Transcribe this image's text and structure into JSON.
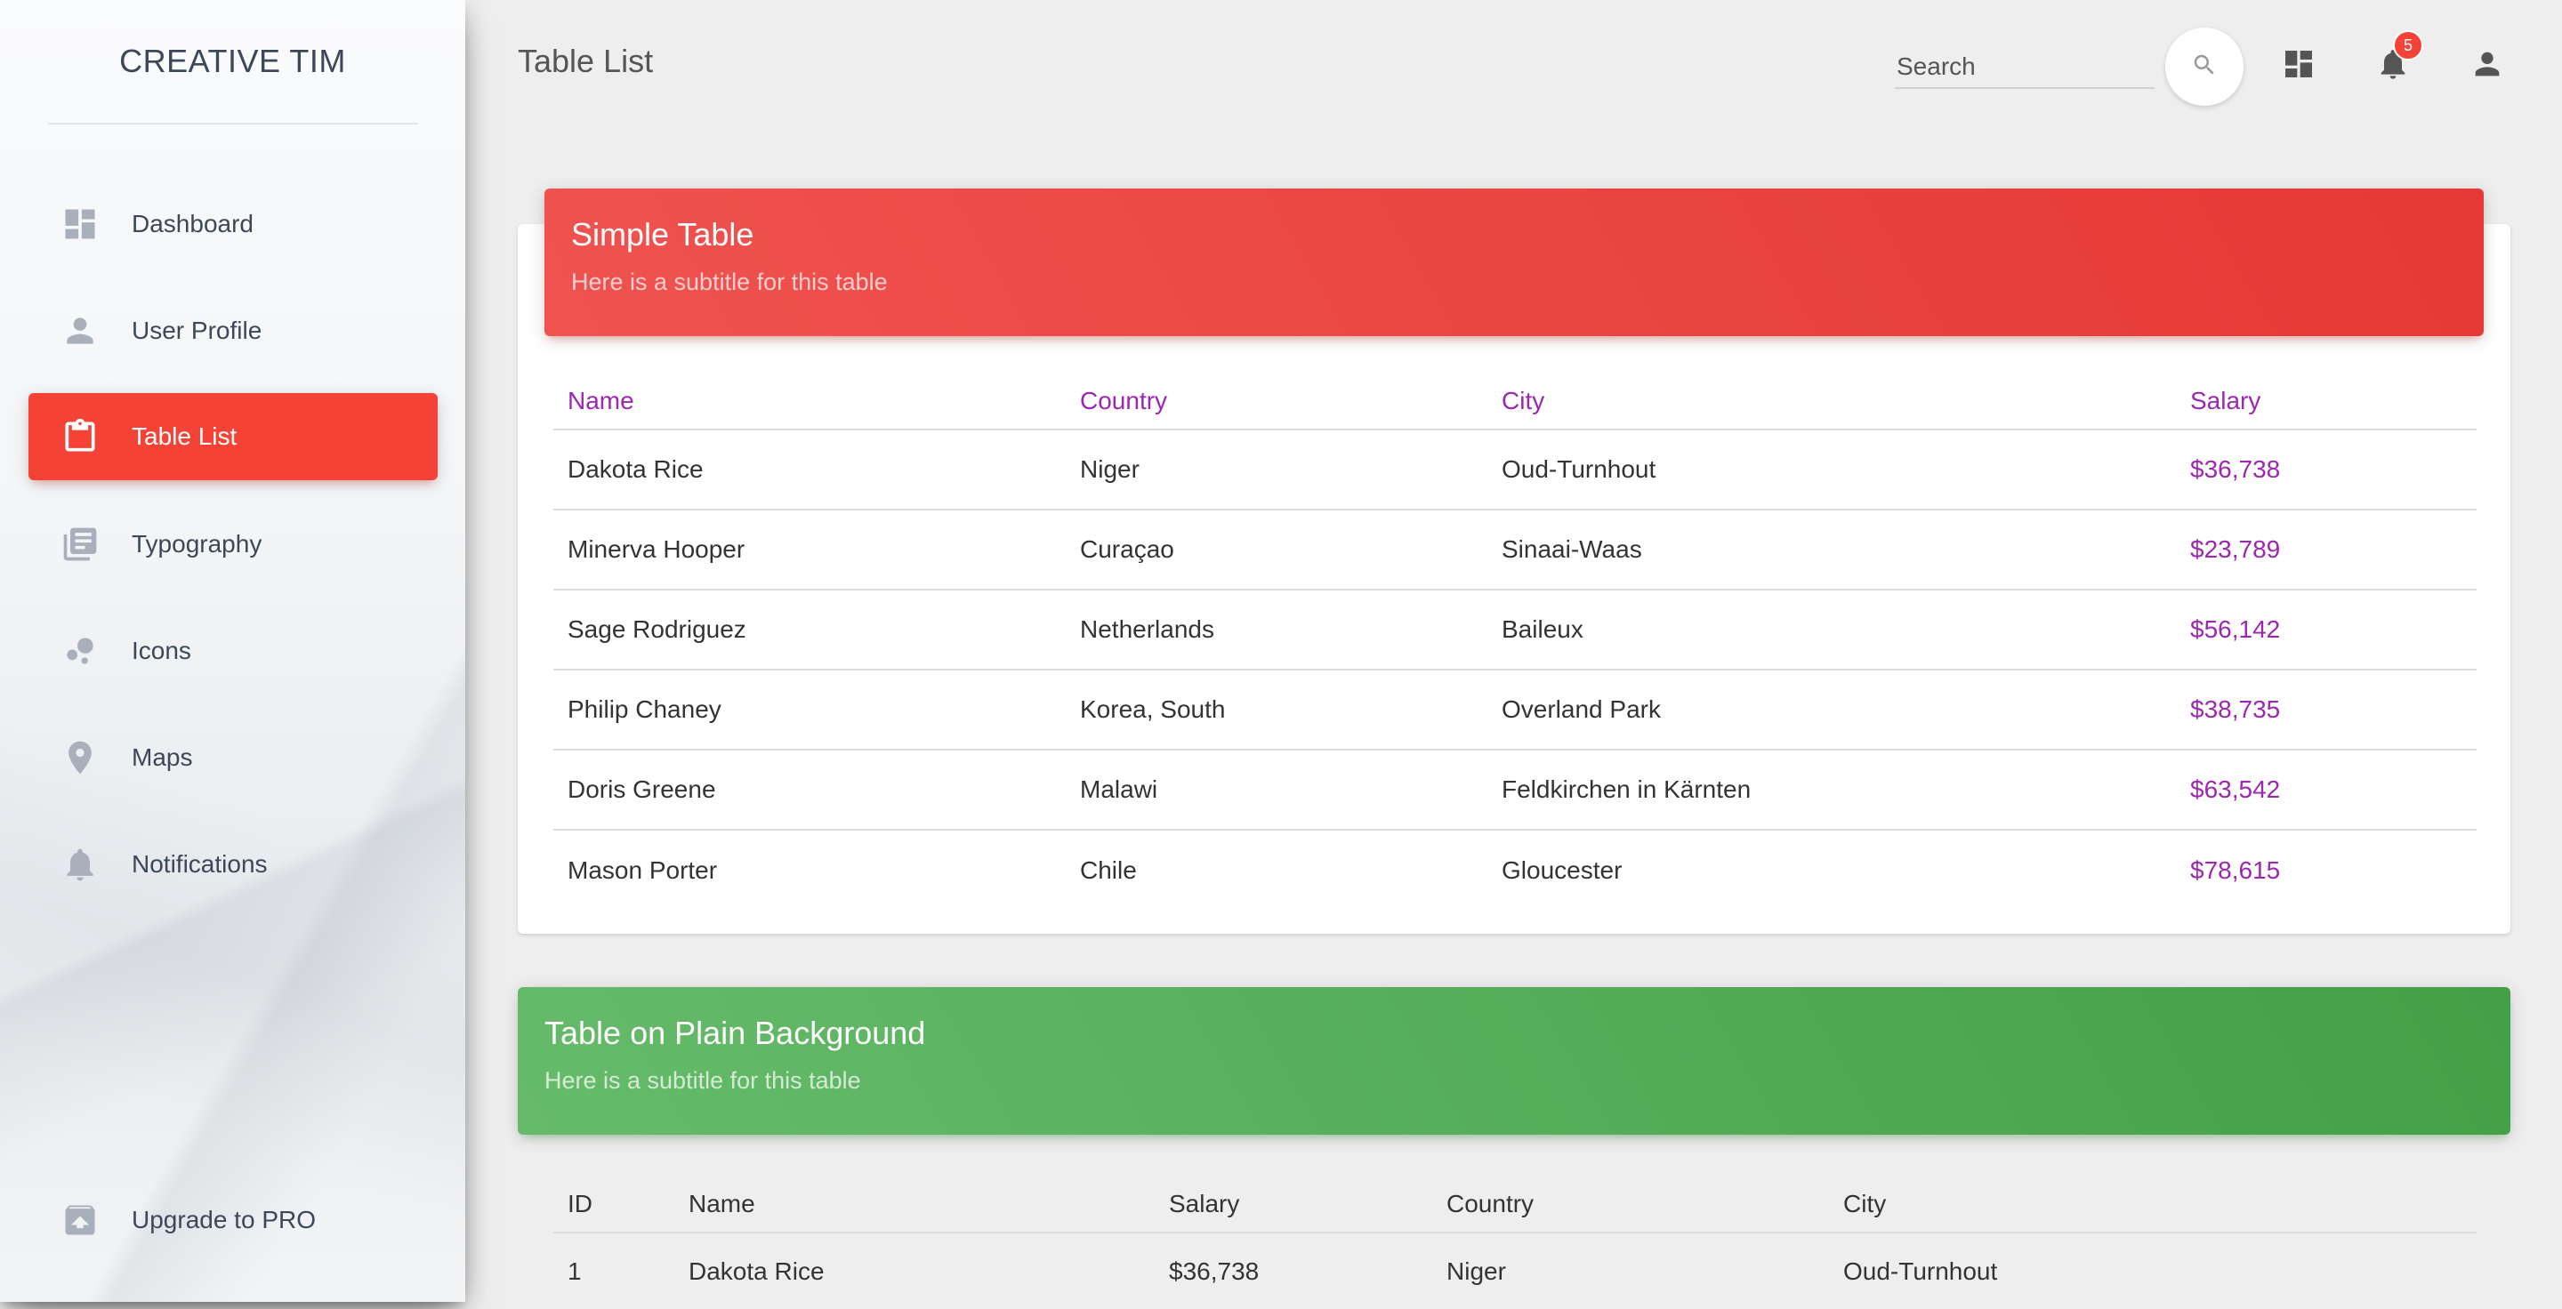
{
  "sidebar": {
    "brand": "CREATIVE TIM",
    "items": [
      {
        "label": "Dashboard",
        "icon": "dashboard-icon"
      },
      {
        "label": "User Profile",
        "icon": "person-icon"
      },
      {
        "label": "Table List",
        "icon": "clipboard-icon",
        "active": true
      },
      {
        "label": "Typography",
        "icon": "library-books-icon"
      },
      {
        "label": "Icons",
        "icon": "bubble-chart-icon"
      },
      {
        "label": "Maps",
        "icon": "location-pin-icon"
      },
      {
        "label": "Notifications",
        "icon": "bell-icon"
      }
    ],
    "upgrade": {
      "label": "Upgrade to PRO",
      "icon": "unarchive-icon"
    }
  },
  "header": {
    "title": "Table List",
    "search_placeholder": "Search",
    "notification_count": "5",
    "icons": [
      "search-icon",
      "dashboard-icon",
      "bell-icon",
      "person-icon"
    ]
  },
  "simple_table": {
    "title": "Simple Table",
    "subtitle": "Here is a subtitle for this table",
    "columns": [
      "Name",
      "Country",
      "City",
      "Salary"
    ],
    "rows": [
      [
        "Dakota Rice",
        "Niger",
        "Oud-Turnhout",
        "$36,738"
      ],
      [
        "Minerva Hooper",
        "Curaçao",
        "Sinaai-Waas",
        "$23,789"
      ],
      [
        "Sage Rodriguez",
        "Netherlands",
        "Baileux",
        "$56,142"
      ],
      [
        "Philip Chaney",
        "Korea, South",
        "Overland Park",
        "$38,735"
      ],
      [
        "Doris Greene",
        "Malawi",
        "Feldkirchen in Kärnten",
        "$63,542"
      ],
      [
        "Mason Porter",
        "Chile",
        "Gloucester",
        "$78,615"
      ]
    ]
  },
  "plain_table": {
    "title": "Table on Plain Background",
    "subtitle": "Here is a subtitle for this table",
    "columns": [
      "ID",
      "Name",
      "Salary",
      "Country",
      "City"
    ],
    "rows": [
      [
        "1",
        "Dakota Rice",
        "$36,738",
        "Niger",
        "Oud-Turnhout"
      ]
    ]
  },
  "colors": {
    "accent_red": "#f44336",
    "accent_green": "#4caf50",
    "column_purple": "#9c27b0"
  }
}
